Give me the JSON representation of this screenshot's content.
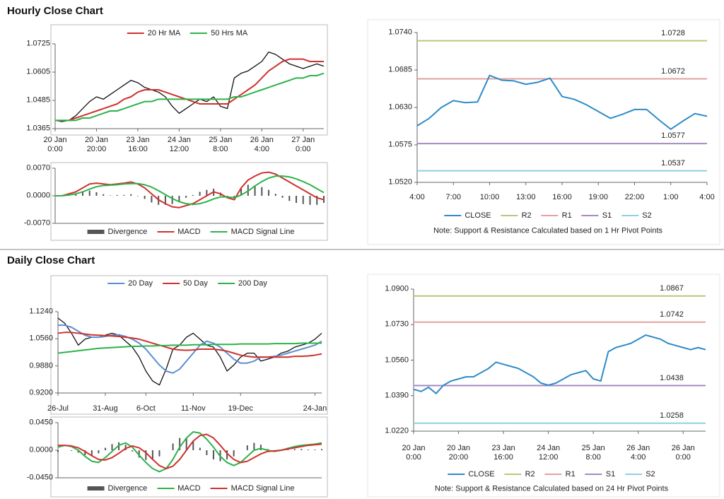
{
  "headings": [
    "Hourly Close Chart",
    "Daily Close Chart"
  ],
  "chart_data": [
    {
      "type": "line",
      "categories": [
        "20 Jan\n0:00",
        null,
        null,
        null,
        null,
        null,
        "20 Jan\n20:00",
        null,
        null,
        null,
        null,
        null,
        "23 Jan\n16:00",
        null,
        null,
        null,
        null,
        null,
        "24 Jan\n12:00",
        null,
        null,
        null,
        null,
        null,
        "25 Jan\n8:00",
        null,
        null,
        null,
        null,
        null,
        "26 Jan\n4:00",
        null,
        null,
        null,
        null,
        null,
        "27 Jan\n0:00",
        null,
        null,
        null
      ],
      "values": [
        1.04,
        1.0395,
        1.04,
        1.042,
        1.045,
        1.048,
        1.05,
        1.049,
        1.051,
        1.053,
        1.055,
        1.057,
        1.056,
        1.054,
        1.053,
        1.052,
        1.05,
        1.046,
        1.043,
        1.045,
        1.047,
        1.049,
        1.048,
        1.05,
        1.046,
        1.045,
        1.058,
        1.06,
        1.061,
        1.063,
        1.065,
        1.069,
        1.068,
        1.066,
        1.064,
        1.063,
        1.062,
        1.063,
        1.064,
        1.063
      ],
      "color": "#111111",
      "series": [
        {
          "name": "20 Hr MA",
          "color": "#d0312d",
          "values": [
            1.04,
            1.04,
            1.04,
            1.041,
            1.042,
            1.043,
            1.044,
            1.045,
            1.046,
            1.047,
            1.049,
            1.05,
            1.052,
            1.053,
            1.053,
            1.053,
            1.052,
            1.051,
            1.05,
            1.049,
            1.048,
            1.047,
            1.047,
            1.047,
            1.047,
            1.047,
            1.049,
            1.051,
            1.053,
            1.055,
            1.058,
            1.061,
            1.063,
            1.065,
            1.066,
            1.066,
            1.066,
            1.065,
            1.065,
            1.065
          ]
        },
        {
          "name": "50 Hrs MA",
          "color": "#2db34a",
          "values": [
            1.04,
            1.04,
            1.04,
            1.04,
            1.041,
            1.041,
            1.042,
            1.043,
            1.044,
            1.044,
            1.045,
            1.046,
            1.047,
            1.048,
            1.048,
            1.049,
            1.049,
            1.049,
            1.049,
            1.049,
            1.049,
            1.049,
            1.049,
            1.049,
            1.049,
            1.049,
            1.05,
            1.05,
            1.051,
            1.052,
            1.053,
            1.054,
            1.055,
            1.056,
            1.057,
            1.058,
            1.058,
            1.059,
            1.059,
            1.06
          ]
        }
      ],
      "ylim": [
        1.0365,
        1.0725
      ],
      "yticks": [
        1.0365,
        1.0485,
        1.0605,
        1.0725
      ],
      "grid": false,
      "legend": "top"
    },
    {
      "type": "macd",
      "series": [
        {
          "name": "Divergence",
          "type": "bar",
          "color": "#555555",
          "values": [
            0,
            0,
            0.0003,
            0.0005,
            0.001,
            0.0013,
            0.0009,
            0.0004,
            0.0001,
            0.0002,
            0.0002,
            0.0004,
            -0.0001,
            -0.0008,
            -0.0017,
            -0.0023,
            -0.0023,
            -0.0021,
            -0.0015,
            -0.0005,
            0.0002,
            0.001,
            0.0015,
            0.0018,
            0.0008,
            -0.0002,
            -0.0005,
            0.0018,
            0.0028,
            0.0025,
            0.0022,
            0.0015,
            0.0005,
            -0.0005,
            -0.0013,
            -0.0018,
            -0.0021,
            -0.0023,
            -0.0023,
            -0.0018
          ]
        },
        {
          "name": "MACD",
          "type": "line",
          "color": "#d0312d",
          "values": [
            0,
            0,
            0.0005,
            0.001,
            0.002,
            0.003,
            0.0032,
            0.003,
            0.0028,
            0.003,
            0.0032,
            0.0035,
            0.003,
            0.002,
            0.0005,
            -0.001,
            -0.002,
            -0.0028,
            -0.003,
            -0.0025,
            -0.002,
            -0.001,
            0,
            0.001,
            0.0005,
            -0.0005,
            -0.001,
            0.002,
            0.004,
            0.005,
            0.0058,
            0.006,
            0.0055,
            0.0045,
            0.0035,
            0.0025,
            0.0015,
            0.0005,
            -0.0005,
            -0.001
          ]
        },
        {
          "name": "MACD Signal Line",
          "type": "line",
          "color": "#2db34a",
          "values": [
            0,
            0,
            0.0002,
            0.0005,
            0.001,
            0.0017,
            0.0023,
            0.0026,
            0.0027,
            0.0028,
            0.003,
            0.0031,
            0.0031,
            0.0028,
            0.0022,
            0.0013,
            0.0003,
            -0.0007,
            -0.0015,
            -0.002,
            -0.0022,
            -0.002,
            -0.0015,
            -0.0008,
            -0.0003,
            -0.0003,
            -0.0005,
            0.0002,
            0.0012,
            0.0025,
            0.0036,
            0.0045,
            0.005,
            0.005,
            0.0048,
            0.0043,
            0.0036,
            0.0028,
            0.0018,
            0.0008
          ]
        }
      ],
      "ylim": [
        -0.007,
        0.007
      ],
      "yticks": [
        {
          "value": 0.007,
          "label": "0.0070"
        },
        {
          "value": 0,
          "label": "0.0000"
        },
        {
          "value": -0.007,
          "label": "-0.0070"
        }
      ],
      "grid": false,
      "legend": "bottom"
    },
    {
      "type": "line",
      "categories": [
        "4:00",
        null,
        null,
        "7:00",
        null,
        null,
        "10:00",
        null,
        null,
        "13:00",
        null,
        null,
        "16:00",
        null,
        null,
        "19:00",
        null,
        null,
        "22:00",
        null,
        null,
        "1:00",
        null,
        null,
        "4:00"
      ],
      "series": [
        {
          "name": "CLOSE",
          "color": "#2e8bc9",
          "values": [
            1.0603,
            1.0614,
            1.063,
            1.064,
            1.0637,
            1.0638,
            1.0677,
            1.067,
            1.0669,
            1.0664,
            1.0667,
            1.0673,
            1.0646,
            1.0642,
            1.0634,
            1.0624,
            1.0614,
            1.062,
            1.0627,
            1.0627,
            1.0612,
            1.0598,
            1.061,
            1.0621,
            1.0617
          ]
        }
      ],
      "levels": [
        {
          "name": "R2",
          "color": "#b5c97a",
          "value": 1.0728
        },
        {
          "name": "R1",
          "color": "#e6a0a0",
          "value": 1.0672
        },
        {
          "name": "S1",
          "color": "#a58bc0",
          "value": 1.0577
        },
        {
          "name": "S2",
          "color": "#8fd0e0",
          "value": 1.0537
        }
      ],
      "ylim": [
        1.052,
        1.074
      ],
      "yticks": [
        {
          "value": 1.052,
          "label": "1.0520"
        },
        1.0575,
        {
          "value": 1.063,
          "label": "1.0630"
        },
        1.0685,
        {
          "value": 1.074,
          "label": "1.0740"
        }
      ],
      "grid": false,
      "legend": "bottom",
      "note": "Note: Support & Resistance Calculated based on 1 Hr Pivot Points"
    },
    {
      "type": "line",
      "categories": [
        "26-Jul",
        null,
        null,
        null,
        null,
        null,
        null,
        "31-Aug",
        null,
        null,
        null,
        null,
        null,
        "6-Oct",
        null,
        null,
        null,
        null,
        null,
        null,
        "11-Nov",
        null,
        null,
        null,
        null,
        null,
        null,
        "19-Dec",
        null,
        null,
        null,
        null,
        null,
        null,
        null,
        null,
        null,
        null,
        "24-Jan",
        null
      ],
      "values": [
        1.108,
        1.095,
        1.07,
        1.04,
        1.055,
        1.06,
        1.06,
        1.065,
        1.07,
        1.065,
        1.05,
        1.035,
        1.01,
        0.975,
        0.95,
        0.94,
        0.98,
        1.03,
        1.04,
        1.06,
        1.07,
        1.055,
        1.04,
        1.035,
        1.01,
        0.975,
        0.99,
        1.01,
        1.02,
        1.02,
        1.0,
        1.005,
        1.01,
        1.02,
        1.025,
        1.035,
        1.04,
        1.045,
        1.055,
        1.07
      ],
      "color": "#111111",
      "series": [
        {
          "name": "20 Day",
          "color": "#5b8fd0",
          "values": [
            1.09,
            1.09,
            1.085,
            1.075,
            1.065,
            1.06,
            1.06,
            1.062,
            1.065,
            1.066,
            1.062,
            1.055,
            1.045,
            1.03,
            1.01,
            0.99,
            0.975,
            0.97,
            0.98,
            1.0,
            1.02,
            1.04,
            1.05,
            1.045,
            1.035,
            1.02,
            1.005,
            0.995,
            0.995,
            1.0,
            1.01,
            1.01,
            1.012,
            1.015,
            1.02,
            1.025,
            1.03,
            1.035,
            1.04,
            1.05
          ]
        },
        {
          "name": "50 Day",
          "color": "#d0312d",
          "values": [
            1.07,
            1.072,
            1.072,
            1.07,
            1.068,
            1.066,
            1.065,
            1.064,
            1.063,
            1.062,
            1.06,
            1.058,
            1.055,
            1.05,
            1.045,
            1.04,
            1.035,
            1.03,
            1.028,
            1.027,
            1.028,
            1.03,
            1.03,
            1.03,
            1.028,
            1.025,
            1.02,
            1.015,
            1.012,
            1.01,
            1.01,
            1.01,
            1.01,
            1.01,
            1.01,
            1.012,
            1.012,
            1.013,
            1.015,
            1.018
          ]
        },
        {
          "name": "200 Day",
          "color": "#2db34a",
          "values": [
            1.02,
            1.022,
            1.024,
            1.026,
            1.028,
            1.03,
            1.032,
            1.033,
            1.034,
            1.035,
            1.036,
            1.037,
            1.037,
            1.038,
            1.038,
            1.039,
            1.039,
            1.04,
            1.04,
            1.04,
            1.041,
            1.041,
            1.041,
            1.042,
            1.042,
            1.042,
            1.042,
            1.043,
            1.043,
            1.043,
            1.043,
            1.043,
            1.044,
            1.044,
            1.044,
            1.044,
            1.045,
            1.045,
            1.045,
            1.045
          ]
        }
      ],
      "ylim": [
        0.92,
        1.124
      ],
      "yticks": [
        {
          "value": 0.92,
          "label": "0.9200"
        },
        {
          "value": 0.988,
          "label": "0.9880"
        },
        {
          "value": 1.056,
          "label": "1.0560"
        },
        {
          "value": 1.124,
          "label": "1.1240"
        }
      ],
      "grid": false,
      "legend": "top"
    },
    {
      "type": "macd",
      "series": [
        {
          "name": "Divergence",
          "type": "bar",
          "color": "#555555",
          "values": [
            -0.003,
            0,
            -0.001,
            -0.004,
            -0.008,
            -0.009,
            -0.005,
            0.004,
            0.01,
            0.013,
            0.009,
            -0.002,
            -0.012,
            -0.016,
            -0.015,
            -0.01,
            0,
            0.011,
            0.02,
            0.02,
            0.015,
            0.004,
            -0.008,
            -0.015,
            -0.018,
            -0.015,
            -0.01,
            0,
            0.008,
            0.012,
            0.009,
            0.002,
            -0.001,
            0,
            0.001,
            0.002,
            0.002,
            0.001,
            0.001,
            0.002
          ]
        },
        {
          "name": "MACD",
          "type": "line",
          "color": "#2db34a",
          "values": [
            0.005,
            0.008,
            0.006,
            0,
            -0.01,
            -0.018,
            -0.02,
            -0.012,
            -0.002,
            0.008,
            0.012,
            0.005,
            -0.008,
            -0.02,
            -0.03,
            -0.035,
            -0.03,
            -0.015,
            0.005,
            0.02,
            0.03,
            0.028,
            0.018,
            0.005,
            -0.01,
            -0.02,
            -0.025,
            -0.02,
            -0.01,
            0,
            0.003,
            0,
            -0.002,
            0,
            0.003,
            0.006,
            0.008,
            0.009,
            0.01,
            0.012
          ]
        },
        {
          "name": "MACD Signal Line",
          "type": "line",
          "color": "#d0312d",
          "values": [
            0.008,
            0.008,
            0.007,
            0.004,
            -0.002,
            -0.009,
            -0.015,
            -0.016,
            -0.012,
            -0.005,
            0.003,
            0.007,
            0.004,
            -0.004,
            -0.015,
            -0.025,
            -0.03,
            -0.026,
            -0.015,
            0,
            0.015,
            0.024,
            0.026,
            0.02,
            0.008,
            -0.005,
            -0.015,
            -0.02,
            -0.018,
            -0.012,
            -0.006,
            -0.002,
            -0.001,
            0,
            0.002,
            0.004,
            0.006,
            0.008,
            0.009,
            0.01
          ]
        }
      ],
      "ylim": [
        -0.045,
        0.045
      ],
      "yticks": [
        {
          "value": 0.045,
          "label": "0.0450"
        },
        {
          "value": 0,
          "label": "0.0000"
        },
        {
          "value": -0.045,
          "label": "-0.0450"
        }
      ],
      "grid": false,
      "legend": "bottom"
    },
    {
      "type": "line",
      "categories": [
        "20 Jan\n0:00",
        null,
        null,
        null,
        null,
        null,
        "20 Jan\n20:00",
        null,
        null,
        null,
        null,
        null,
        "23 Jan\n16:00",
        null,
        null,
        null,
        null,
        null,
        "24 Jan\n12:00",
        null,
        null,
        null,
        null,
        null,
        "25 Jan\n8:00",
        null,
        null,
        null,
        null,
        null,
        "26 Jan\n4:00",
        null,
        null,
        null,
        null,
        null,
        "26 Jan\n0:00",
        null,
        null,
        null
      ],
      "series": [
        {
          "name": "CLOSE",
          "color": "#2e8bc9",
          "values": [
            1.042,
            1.041,
            1.043,
            1.04,
            1.044,
            1.046,
            1.047,
            1.048,
            1.048,
            1.05,
            1.052,
            1.055,
            1.054,
            1.053,
            1.052,
            1.05,
            1.048,
            1.045,
            1.044,
            1.045,
            1.047,
            1.049,
            1.05,
            1.051,
            1.047,
            1.046,
            1.06,
            1.062,
            1.063,
            1.064,
            1.066,
            1.068,
            1.067,
            1.066,
            1.064,
            1.063,
            1.062,
            1.061,
            1.062,
            1.061
          ]
        }
      ],
      "levels": [
        {
          "name": "R2",
          "color": "#b5c97a",
          "value": 1.0867
        },
        {
          "name": "R1",
          "color": "#e6a0a0",
          "value": 1.0742
        },
        {
          "name": "S1",
          "color": "#a58bc0",
          "value": 1.0438
        },
        {
          "name": "S2",
          "color": "#8fd0e0",
          "value": 1.0258
        }
      ],
      "ylim": [
        1.022,
        1.09
      ],
      "yticks": [
        {
          "value": 1.022,
          "label": "1.0220"
        },
        {
          "value": 1.039,
          "label": "1.0390"
        },
        {
          "value": 1.056,
          "label": "1.0560"
        },
        {
          "value": 1.073,
          "label": "1.0730"
        },
        {
          "value": 1.09,
          "label": "1.0900"
        }
      ],
      "grid": false,
      "legend": "bottom",
      "note": "Note: Support & Resistance Calculated based on 24 Hr Pivot Points"
    }
  ]
}
